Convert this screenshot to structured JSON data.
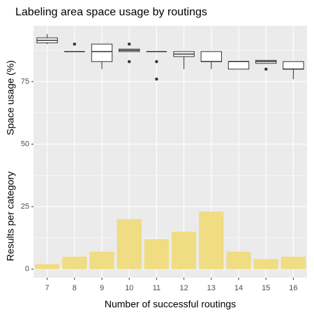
{
  "chart_data": {
    "type": "box_bar",
    "title": "Labeling area space usage by routings",
    "x_label": "Number of successful routings",
    "y_label_top": "Space usage (%)",
    "y_label_bottom": "Results per category",
    "categories": [
      "7",
      "8",
      "9",
      "10",
      "11",
      "12",
      "13",
      "14",
      "15",
      "16"
    ],
    "bar_color": "#f0dc82",
    "box_fill": "#ffffff",
    "box_stroke": "#333333",
    "values": [
      2,
      5,
      7,
      20,
      12,
      15,
      23,
      7,
      4,
      5
    ],
    "boxes": [
      {
        "min": 90,
        "q1": 90.5,
        "median": 91.5,
        "q3": 92.5,
        "max": 94,
        "outliers": []
      },
      {
        "min": 87,
        "q1": 87,
        "median": 87,
        "q3": 87,
        "max": 87,
        "outliers": [
          90
        ]
      },
      {
        "min": 80,
        "q1": 83,
        "median": 87,
        "q3": 90,
        "max": 90,
        "outliers": []
      },
      {
        "min": 87,
        "q1": 87,
        "median": 87.5,
        "q3": 88,
        "max": 88,
        "outliers": [
          90,
          83
        ]
      },
      {
        "min": 87,
        "q1": 87,
        "median": 87,
        "q3": 87,
        "max": 87,
        "outliers": [
          83,
          76
        ]
      },
      {
        "min": 80,
        "q1": 85,
        "median": 86,
        "q3": 87,
        "max": 87,
        "outliers": []
      },
      {
        "min": 80,
        "q1": 83,
        "median": 83,
        "q3": 87,
        "max": 87,
        "outliers": []
      },
      {
        "min": 80,
        "q1": 80,
        "median": 83,
        "q3": 83,
        "max": 83,
        "outliers": []
      },
      {
        "min": 82.3,
        "q1": 82.3,
        "median": 83,
        "q3": 83.5,
        "max": 83.5,
        "outliers": [
          80
        ]
      },
      {
        "min": 76,
        "q1": 80,
        "median": 80,
        "q3": 83,
        "max": 83,
        "outliers": []
      }
    ],
    "ylim": [
      -3.4,
      97.3
    ],
    "yticks": [
      0,
      25,
      50,
      75
    ],
    "grid": true,
    "minor_grid": true
  }
}
